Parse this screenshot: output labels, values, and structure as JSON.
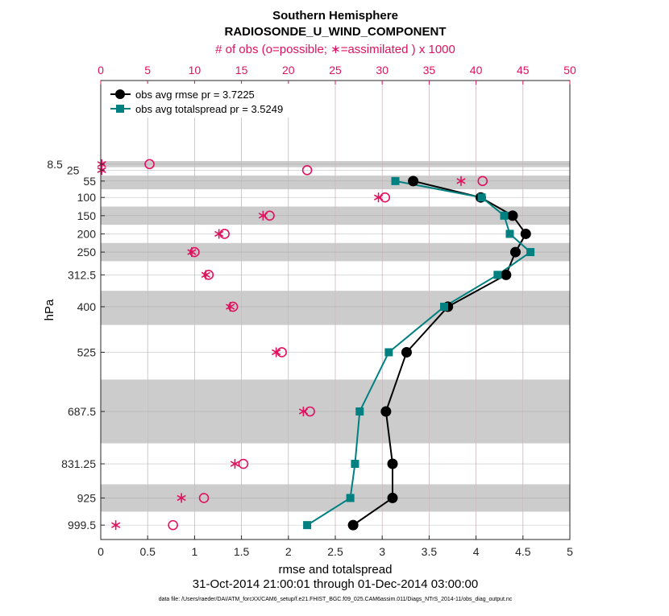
{
  "chart_data": {
    "type": "line",
    "title": "Southern Hemisphere",
    "subtitle": "RADIOSONDE_U_WIND_COMPONENT",
    "xlabel": "rmse and totalspread",
    "ylabel": "hPa",
    "top_xlabel": "# of obs (o=possible; ∗=assimilated ) x 1000",
    "date_range": "31-Oct-2014 21:00:01 through 01-Dec-2014 03:00:00",
    "footnote": "data file: /Users/raeder/DAI/ATM_forcXX/CAM6_setup/f.e21.FHIST_BGC.f09_025.CAM6assim.011/Diags_NTrS_2014-11/obs_diag_output.nc",
    "xlim": [
      0,
      5
    ],
    "top_xlim": [
      0,
      50
    ],
    "ylim": [
      1039,
      -221
    ],
    "xticks": [
      "0",
      "0.5",
      "1",
      "1.5",
      "2",
      "2.5",
      "3",
      "3.5",
      "4",
      "4.5",
      "5"
    ],
    "top_xticks": [
      "0",
      "5",
      "10",
      "15",
      "20",
      "25",
      "30",
      "35",
      "40",
      "45",
      "50"
    ],
    "levels": [
      8.5,
      25,
      55,
      100,
      150,
      200,
      250,
      312.5,
      400,
      525,
      687.5,
      831.25,
      925,
      999.5
    ],
    "ytick_labels": [
      "8.5",
      "25",
      "55",
      "100",
      "150",
      "200",
      "250",
      "312.5",
      "400",
      "525",
      "687.5",
      "831.25",
      "925",
      "999.5"
    ],
    "shaded_layers": [
      [
        0,
        17
      ],
      [
        40,
        77.5
      ],
      [
        125,
        175
      ],
      [
        225,
        275
      ],
      [
        356.25,
        450
      ],
      [
        600,
        775
      ],
      [
        887.5,
        962.5
      ]
    ],
    "grid": true,
    "legend_position": "top-left",
    "series": [
      {
        "name": "obs avg rmse pr = 3.7225",
        "color": "#000000",
        "marker": "circle",
        "axis": "bottom",
        "levels": [
          55,
          100,
          150,
          200,
          250,
          312.5,
          400,
          525,
          687.5,
          831.25,
          925,
          999.5
        ],
        "values": [
          3.33,
          4.05,
          4.39,
          4.53,
          4.42,
          4.32,
          3.7,
          3.26,
          3.04,
          3.11,
          3.11,
          2.69
        ]
      },
      {
        "name": "obs avg totalspread pr = 3.5249",
        "color": "#008080",
        "marker": "square",
        "axis": "bottom",
        "levels": [
          55,
          100,
          150,
          200,
          250,
          312.5,
          400,
          525,
          687.5,
          831.25,
          925,
          999.5
        ],
        "values": [
          3.14,
          4.06,
          4.3,
          4.36,
          4.58,
          4.23,
          3.66,
          3.07,
          2.76,
          2.71,
          2.66,
          2.2
        ]
      },
      {
        "color": "#e0115f",
        "marker": "open-circle",
        "axis": "top",
        "role": "possible",
        "levels": [
          8.5,
          25,
          55,
          100,
          150,
          200,
          250,
          312.5,
          400,
          525,
          687.5,
          831.25,
          925,
          999.5
        ],
        "values": [
          5.2,
          22,
          40.7,
          30.3,
          18,
          13.2,
          10,
          11.5,
          14.1,
          19.3,
          22.3,
          15.2,
          11,
          7.7
        ]
      },
      {
        "color": "#e0115f",
        "marker": "asterisk",
        "axis": "top",
        "role": "assimilated",
        "levels": [
          8.5,
          25,
          55,
          100,
          150,
          200,
          250,
          312.5,
          400,
          525,
          687.5,
          831.25,
          925,
          999.5
        ],
        "values": [
          0.1,
          0.1,
          38.4,
          29.6,
          17.3,
          12.6,
          9.7,
          11.2,
          13.8,
          18.7,
          21.6,
          14.3,
          8.6,
          1.6
        ]
      }
    ]
  }
}
